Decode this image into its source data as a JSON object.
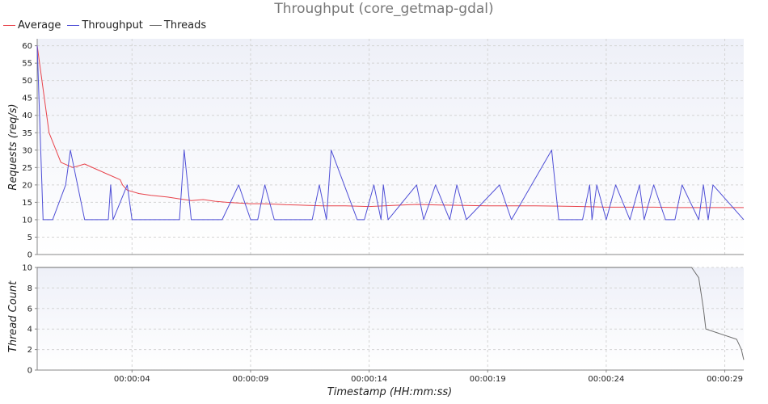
{
  "chart_data": [
    {
      "type": "line",
      "title": "Throughput (core_getmap-gdal)",
      "ylabel": "Requests (req/s)",
      "ylim": [
        0,
        62
      ],
      "yticks": [
        0,
        5,
        10,
        15,
        20,
        25,
        30,
        35,
        40,
        45,
        50,
        55,
        60
      ],
      "grid": true,
      "legend_position": "top-left",
      "series": [
        {
          "name": "Average",
          "color": "#e8434b",
          "x": [
            0,
            0.5,
            1,
            1.5,
            2,
            2.5,
            3,
            3.5,
            3.6,
            3.8,
            4.3,
            4.8,
            5.5,
            6,
            6.5,
            7,
            7.5,
            8,
            8.5,
            9,
            9.5,
            10,
            10.5,
            11,
            11.5,
            12,
            13,
            14,
            15,
            16,
            17,
            18,
            19,
            20,
            21,
            22,
            23,
            24,
            25,
            26,
            27,
            28,
            29,
            29.8
          ],
          "values": [
            60,
            35,
            26.5,
            25,
            26,
            24.5,
            23,
            21.5,
            20,
            18.5,
            17.5,
            17,
            16.5,
            16,
            15.5,
            15.8,
            15.3,
            15,
            14.8,
            14.6,
            14.6,
            14.5,
            14.3,
            14.2,
            14.1,
            14,
            14,
            13.8,
            14.1,
            14.4,
            14.2,
            14.1,
            14,
            14,
            14,
            13.9,
            13.8,
            13.6,
            13.6,
            13.6,
            13.5,
            13.5,
            13.5,
            13.5
          ]
        },
        {
          "name": "Throughput",
          "color": "#4f4fd6",
          "x": [
            0,
            0.25,
            0.45,
            0.65,
            1.2,
            1.4,
            2.0,
            3.0,
            3.1,
            3.2,
            3.8,
            4.0,
            6.0,
            6.2,
            6.5,
            7.8,
            8.5,
            9.0,
            9.3,
            9.6,
            10.0,
            11.6,
            11.9,
            12.2,
            12.4,
            13.5,
            13.8,
            14.2,
            14.5,
            14.6,
            14.8,
            16.0,
            16.3,
            16.8,
            17.4,
            17.7,
            18.1,
            19.5,
            20.0,
            21.7,
            22.0,
            23.0,
            23.3,
            23.4,
            23.6,
            24.0,
            24.4,
            25.0,
            25.4,
            25.6,
            26.0,
            26.5,
            26.9,
            27.2,
            27.9,
            28.1,
            28.3,
            28.5,
            29.8
          ],
          "values": [
            60,
            10,
            10,
            10,
            20,
            30,
            10,
            10,
            20,
            10,
            20,
            10,
            10,
            30,
            10,
            10,
            20,
            10,
            10,
            20,
            10,
            10,
            20,
            10,
            30,
            10,
            10,
            20,
            10,
            20,
            10,
            20,
            10,
            20,
            10,
            20,
            10,
            20,
            10,
            30,
            10,
            10,
            20,
            10,
            20,
            10,
            20,
            10,
            20,
            10,
            20,
            10,
            10,
            20,
            10,
            20,
            10,
            20,
            10
          ]
        }
      ]
    },
    {
      "type": "line",
      "xlabel": "Timestamp (HH:mm:ss)",
      "ylabel": "Thread Count",
      "ylim": [
        0,
        10
      ],
      "yticks": [
        0,
        2,
        4,
        6,
        8,
        10
      ],
      "xlim": [
        0,
        29.8
      ],
      "xticks": [
        4,
        9,
        14,
        19,
        24,
        29
      ],
      "xtick_labels": [
        "00:00:04",
        "00:00:09",
        "00:00:14",
        "00:00:19",
        "00:00:24",
        "00:00:29"
      ],
      "grid": true,
      "series": [
        {
          "name": "Threads",
          "color": "#6e6e6e",
          "x": [
            0,
            27.6,
            27.9,
            28.1,
            28.2,
            29.5,
            29.7,
            29.8
          ],
          "values": [
            10,
            10,
            9,
            6,
            4,
            3,
            2,
            1
          ]
        }
      ]
    }
  ]
}
